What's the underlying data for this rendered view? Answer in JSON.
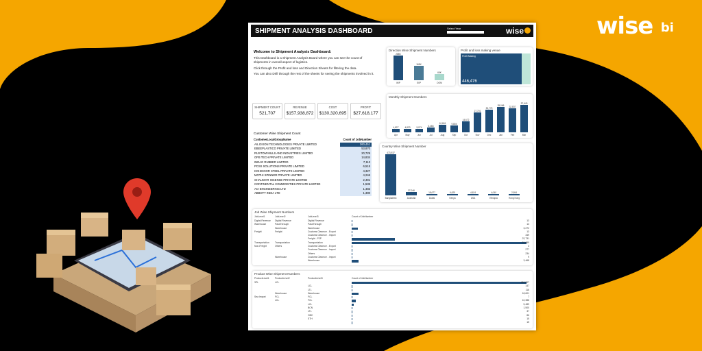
{
  "brand": {
    "logo_word": "wise",
    "logo_badge": "bi"
  },
  "dashboard": {
    "title": "SHIPMENT ANALYSIS DASHBOARD",
    "select_year_label": "Select Year",
    "header_logo": "wise",
    "welcome": {
      "heading": "Welcome to Shipment Analysis Dashboard:",
      "p1": "This Dashboard is a Shipment Analysis Board where you can see the count of shipments in overall aspect of logistics.",
      "p2": "Click through the Profit and loss and Direction Sheets for filtering the data.",
      "p3": "You can also Drill through the rest of the sheets for seeing the shipments involved in it."
    },
    "kpis": [
      {
        "label": "SHIPMENT COUNT",
        "value": "521,707"
      },
      {
        "label": "REVENUE",
        "value": "$157,938,872"
      },
      {
        "label": "COST",
        "value": "$130,320,695"
      },
      {
        "label": "PROFIT",
        "value": "$27,618,177"
      }
    ],
    "customer_table": {
      "title": "Customer Wise Shipment Count",
      "col1": "CustomerLocalGroupName",
      "col2": "Count of JobNumber",
      "rows": [
        {
          "name": "AIL DIXON TECHNOLOGIES PRIVATE LIMITED",
          "count": "360,451"
        },
        {
          "name": "EBEEPLASTICO PRIVATE LIMITED",
          "count": "53,870"
        },
        {
          "name": "RUSTOM MILLS AND INDUSTRIES LIMITED",
          "count": "20,729"
        },
        {
          "name": "OFB TECH PRIVATE LIMITED",
          "count": "14,834"
        },
        {
          "name": "INDAG RUBBER LIMITED",
          "count": "7,113"
        },
        {
          "name": "PCSS SOLUTIONS PRIVATE LIMITED",
          "count": "6,515"
        },
        {
          "name": "KOHINOOR STEEL PRIVATE LIMITED",
          "count": "4,327"
        },
        {
          "name": "MOTHI SPINNER PRIVATE LIMITED",
          "count": "4,246"
        },
        {
          "name": "SHALIMAR INCENSE PRIVATE LIMITED",
          "count": "2,491"
        },
        {
          "name": "CONTINENTAL COMMODITIES PRIVATE LIMITED",
          "count": "1,535"
        },
        {
          "name": "AIA ENGINEERING LTD",
          "count": "1,483"
        },
        {
          "name": "ABBOTT INDIA LTD",
          "count": "1,390"
        }
      ]
    },
    "direction_chart": {
      "title": "Direction Wise Shipment Numbers",
      "bars": [
        {
          "label": "IMP",
          "value": "288K",
          "v": 288
        },
        {
          "label": "EXP",
          "value": "165K",
          "v": 165
        },
        {
          "label": "DOM",
          "value": "68K",
          "v": 68
        }
      ]
    },
    "profit_loss": {
      "title": "Profit and loss making venue",
      "label": "Profit Making",
      "value": "446,476"
    },
    "monthly": {
      "title": "Monthly Shipment Numbers",
      "bars": [
        {
          "m": "Apr",
          "v": "4,827",
          "n": 4827
        },
        {
          "m": "May",
          "v": "4,823",
          "n": 4823
        },
        {
          "m": "Jun",
          "v": "5,074",
          "n": 5074
        },
        {
          "m": "Jul",
          "v": "6,466",
          "n": 6466
        },
        {
          "m": "Aug",
          "v": "10,661",
          "n": 10661
        },
        {
          "m": "Sep",
          "v": "9,804",
          "n": 9804
        },
        {
          "m": "Oct",
          "v": "14,672",
          "n": 14672
        },
        {
          "m": "Nov",
          "v": "27,701",
          "n": 27701
        },
        {
          "m": "Dec",
          "v": "30,775",
          "n": 30775
        },
        {
          "m": "Jan",
          "v": "35,066",
          "n": 35066
        },
        {
          "m": "Feb",
          "v": "32,837",
          "n": 32837
        },
        {
          "m": "Mar",
          "v": "37,643",
          "n": 37643
        }
      ]
    },
    "country": {
      "title": "Country Wise Shipment Number",
      "bars": [
        {
          "c": "Bangladesh",
          "v": "473,937",
          "n": 473937
        },
        {
          "c": "Australia",
          "v": "37,046",
          "n": 37046
        },
        {
          "c": "Dubai",
          "v": "18,677",
          "n": 18677
        },
        {
          "c": "Kenya",
          "v": "6,625",
          "n": 6625
        },
        {
          "c": "USA",
          "v": "4,624",
          "n": 4624
        },
        {
          "c": "Ethiopia",
          "v": "4,040",
          "n": 4040
        },
        {
          "c": "Hong Kong",
          "v": "2,594",
          "n": 2594
        }
      ]
    },
    "job_wise": {
      "title": "Job Wise Shipment Numbers",
      "headers": [
        "JobLevel1",
        "JobLevel2",
        "JobLevel3",
        "Count of JobNumber"
      ],
      "rows": [
        [
          "Digital Revenue",
          "Digital Revenue",
          "Digital Revenue",
          "13"
        ],
        [
          "Warehouse",
          "PassThrough",
          "PassThrough",
          "13"
        ],
        [
          "",
          "Warehouse",
          "Warehouse",
          "3,272"
        ],
        [
          "Freight",
          "Freight",
          "Customs Clearnce - Export",
          "13"
        ],
        [
          "",
          "",
          "Customs Clearnce - Import",
          "349"
        ],
        [
          "",
          "",
          "Freight - P2P",
          "22,731"
        ],
        [
          "Transportation",
          "Transportation",
          "Transportation",
          "91,699"
        ],
        [
          "Non-Freight",
          "Others",
          "Customs Clearnce - Export",
          "3"
        ],
        [
          "",
          "",
          "Customs Clearnce - Import",
          "277"
        ],
        [
          "",
          "",
          "Others",
          "234"
        ],
        [
          "",
          "Warehouse",
          "Customs Clearnce - Import",
          "9"
        ],
        [
          "",
          "",
          "Warehouse",
          "3,468"
        ]
      ]
    },
    "product_wise": {
      "title": "Product Wise Shipment Numbers",
      "headers": [
        "ProductLevel1",
        "ProductLevel2",
        "ProductLevel3",
        "Count of JobNumber"
      ],
      "rows": [
        [
          "3PL",
          "LCL",
          "",
          "464,007"
        ],
        [
          "",
          "",
          "LCL",
          "147"
        ],
        [
          "",
          "",
          "LTL",
          "116"
        ],
        [
          "",
          "Warehouse",
          "Warehouse",
          "18,601"
        ],
        [
          "Sea Import",
          "FCL",
          "FCL",
          "7"
        ],
        [
          "",
          "LCL",
          "FCL",
          "10,388"
        ],
        [
          "",
          "",
          "LCL",
          "5,489"
        ],
        [
          "",
          "",
          "BCN",
          "1,500"
        ],
        [
          "",
          "",
          "LTL",
          "37"
        ],
        [
          "",
          "",
          "OBC",
          "86"
        ],
        [
          "",
          "",
          "STH",
          "15"
        ],
        [
          "",
          "",
          "",
          "15"
        ]
      ]
    }
  }
}
